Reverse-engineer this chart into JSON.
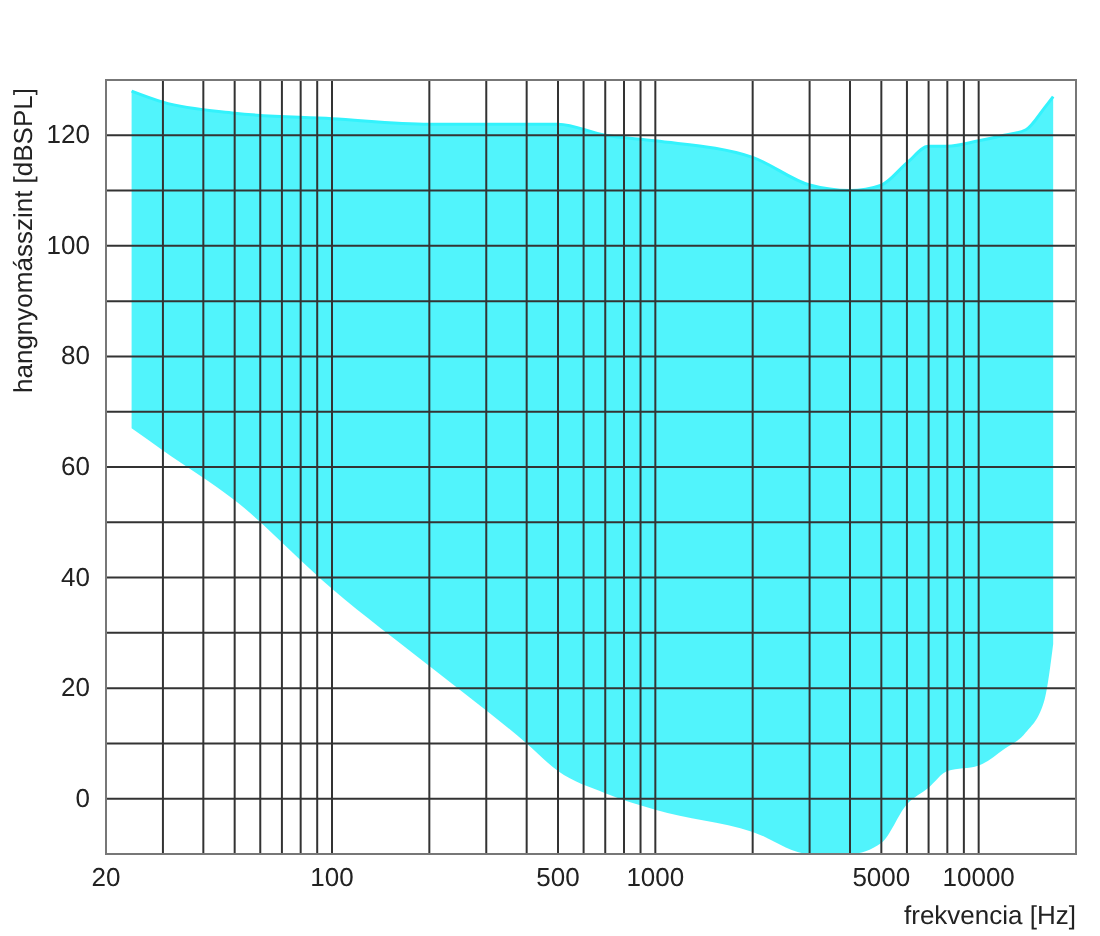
{
  "chart_data": {
    "type": "line",
    "xlabel": "frekvencia [Hz]",
    "ylabel": "hangnyomásszint [dBSPL]",
    "log": "x",
    "grid": true,
    "xlim": [
      20,
      20000
    ],
    "ylim": [
      -10,
      130
    ],
    "xticks": [
      20,
      {
        "value": 30,
        "label": null
      },
      {
        "value": 40,
        "label": null
      },
      {
        "value": 50,
        "label": null
      },
      {
        "value": 60,
        "label": null
      },
      {
        "value": 70,
        "label": null
      },
      {
        "value": 80,
        "label": null
      },
      {
        "value": 90,
        "label": null
      },
      100,
      {
        "value": 200,
        "label": null
      },
      {
        "value": 300,
        "label": null
      },
      {
        "value": 400,
        "label": null
      },
      500,
      {
        "value": 600,
        "label": null
      },
      {
        "value": 700,
        "label": null
      },
      {
        "value": 800,
        "label": null
      },
      {
        "value": 900,
        "label": null
      },
      1000,
      {
        "value": 2000,
        "label": null
      },
      {
        "value": 3000,
        "label": null
      },
      {
        "value": 4000,
        "label": null
      },
      5000,
      {
        "value": 6000,
        "label": null
      },
      {
        "value": 7000,
        "label": null
      },
      {
        "value": 8000,
        "label": null
      },
      {
        "value": 9000,
        "label": null
      },
      10000
    ],
    "yticks": [
      0,
      {
        "value": 10,
        "label": null
      },
      20,
      {
        "value": 30,
        "label": null
      },
      40,
      {
        "value": 50,
        "label": null
      },
      60,
      {
        "value": 70,
        "label": null
      },
      80,
      {
        "value": 90,
        "label": null
      },
      100,
      {
        "value": 110,
        "label": null
      },
      120
    ],
    "series": [
      {
        "color": "#33f2fc",
        "x": [
          24,
          30,
          50,
          100,
          200,
          400,
          500,
          700,
          1000,
          2000,
          3000,
          4000,
          5000,
          6000,
          7000,
          8000,
          10000,
          12000,
          14000,
          16000,
          17000
        ],
        "values": [
          128,
          126,
          124,
          123,
          122,
          122,
          122,
          120,
          119,
          116,
          111,
          110,
          111,
          115,
          118,
          118,
          119,
          120,
          121,
          125,
          127
        ],
        "upper": [
          128,
          126,
          124,
          123,
          122,
          122,
          122,
          120,
          119,
          116,
          111,
          110,
          111,
          115,
          118,
          118,
          119,
          120,
          121,
          125,
          127
        ],
        "lower": [
          67,
          63,
          54,
          38,
          24,
          10,
          5,
          1,
          -2,
          -6,
          -10,
          -10,
          -8,
          -1,
          2,
          5,
          6,
          9,
          12,
          18,
          28
        ]
      }
    ]
  }
}
